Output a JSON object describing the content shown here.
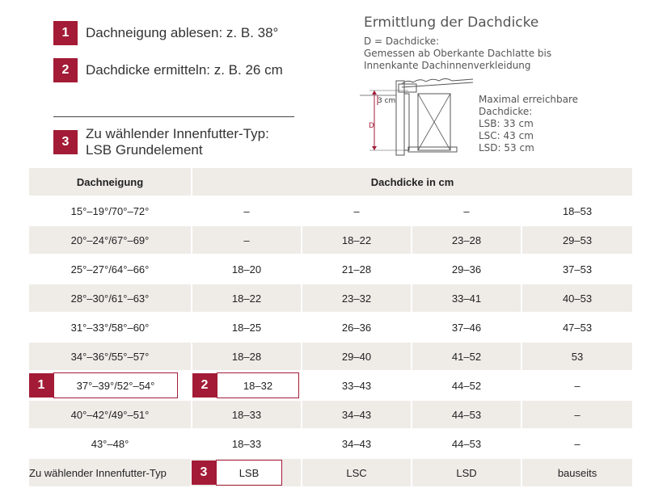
{
  "steps": [
    {
      "num": "1",
      "text": "Dachneigung ablesen: z. B. 38°"
    },
    {
      "num": "2",
      "text": "Dachdicke ermitteln: z. B. 26 cm"
    },
    {
      "num": "3",
      "text": "Zu wählender Innenfutter-Typ:\nLSB Grundelement"
    }
  ],
  "diagram": {
    "title": "Ermittlung der Dachdicke",
    "description": "D = Dachdicke:\nGemessen ab Oberkante Dachlatte bis\nInnenkante Dachinnenverkleidung",
    "label_3cm": "3 cm",
    "label_d": "D",
    "max_text": "Maximal erreichbare\nDachdicke:\nLSB: 33 cm\nLSC: 43 cm\nLSD: 53 cm",
    "accent_color": "#a31b36"
  },
  "table": {
    "header_left": "Dachneigung",
    "header_right": "Dachdicke in cm",
    "rows": [
      [
        "15°–19°/70°–72°",
        "–",
        "–",
        "–",
        "18–53"
      ],
      [
        "20°–24°/67°–69°",
        "–",
        "18–22",
        "23–28",
        "29–53"
      ],
      [
        "25°–27°/64°–66°",
        "18–20",
        "21–28",
        "29–36",
        "37–53"
      ],
      [
        "28°–30°/61°–63°",
        "18–22",
        "23–32",
        "33–41",
        "40–53"
      ],
      [
        "31°–33°/58°–60°",
        "18–25",
        "26–36",
        "37–46",
        "47–53"
      ],
      [
        "34°–36°/55°–57°",
        "18–28",
        "29–40",
        "41–52",
        "53"
      ],
      [
        "37°–39°/52°–54°",
        "18–32",
        "33–43",
        "44–52",
        "–"
      ],
      [
        "40°–42°/49°–51°",
        "18–33",
        "34–43",
        "44–53",
        "–"
      ],
      [
        "43°–48°",
        "18–33",
        "34–43",
        "44–53",
        "–"
      ]
    ],
    "footer": [
      "Zu wählender Innenfutter-Typ",
      "LSB",
      "LSC",
      "LSD",
      "bauseits"
    ],
    "marker_1": "1",
    "marker_2": "2",
    "marker_3": "3"
  }
}
